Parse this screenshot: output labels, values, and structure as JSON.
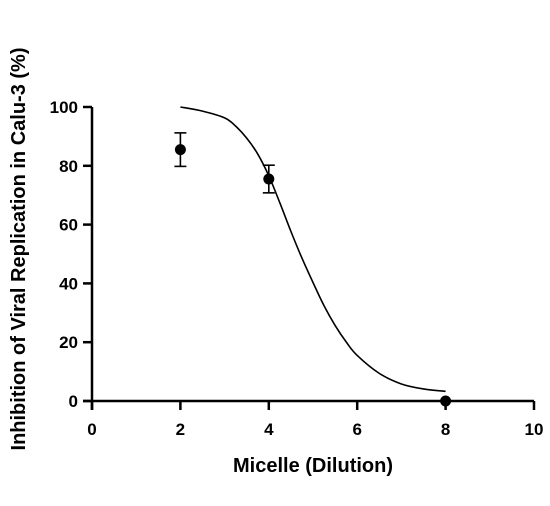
{
  "chart_data": {
    "type": "scatter",
    "title": "",
    "xlabel": "Micelle (Dilution)",
    "ylabel": "Inhibition of Viral Replication in Calu-3 (%)",
    "xlim": [
      0,
      10
    ],
    "ylim": [
      0,
      100
    ],
    "xticks": [
      0,
      2,
      4,
      6,
      8,
      10
    ],
    "yticks": [
      0,
      20,
      40,
      60,
      80,
      100
    ],
    "grid": false,
    "legend": "none",
    "series": [
      {
        "type": "scatter",
        "x": [
          2,
          4,
          8
        ],
        "y": [
          85.5,
          75.5,
          0
        ],
        "error": [
          5.7,
          4.7,
          0
        ],
        "color": "#000000"
      },
      {
        "type": "line",
        "x": [
          2.0,
          2.5,
          3.0,
          3.25,
          3.5,
          3.75,
          4.0,
          4.25,
          4.5,
          4.75,
          5.0,
          5.25,
          5.5,
          5.75,
          6.0,
          6.5,
          7.0,
          7.5,
          8.0
        ],
        "y": [
          100,
          98.6,
          96.3,
          93.5,
          89.4,
          84.0,
          76.6,
          67.4,
          57.7,
          48.6,
          40.3,
          32.4,
          25.7,
          20.1,
          15.5,
          9.4,
          5.8,
          4.1,
          3.3
        ],
        "color": "#000000"
      }
    ]
  }
}
